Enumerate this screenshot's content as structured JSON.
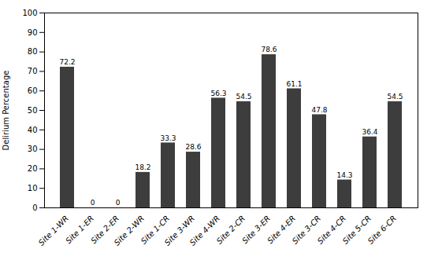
{
  "chart_data": {
    "type": "bar",
    "categories": [
      "Site 1-WR",
      "Site 1-ER",
      "Site 2-ER",
      "Site 2-WR",
      "Site 1-CR",
      "Site 3-WR",
      "Site 4-WR",
      "Site 2-CR",
      "Site 3-ER",
      "Site 4-ER",
      "Site 3-CR",
      "Site 4-CR",
      "Site 5-CR",
      "Site 6-CR"
    ],
    "values": [
      72.2,
      0,
      0,
      18.2,
      33.3,
      28.6,
      56.3,
      54.5,
      78.6,
      61.1,
      47.8,
      14.3,
      36.4,
      54.5
    ],
    "color": "#3d3d3d",
    "ylabel": "Delirium Percentage",
    "ylim": [
      0,
      100
    ],
    "yticks": [
      0,
      10,
      20,
      30,
      40,
      50,
      60,
      70,
      80,
      90,
      100
    ],
    "grid": false,
    "data_labels": true
  }
}
